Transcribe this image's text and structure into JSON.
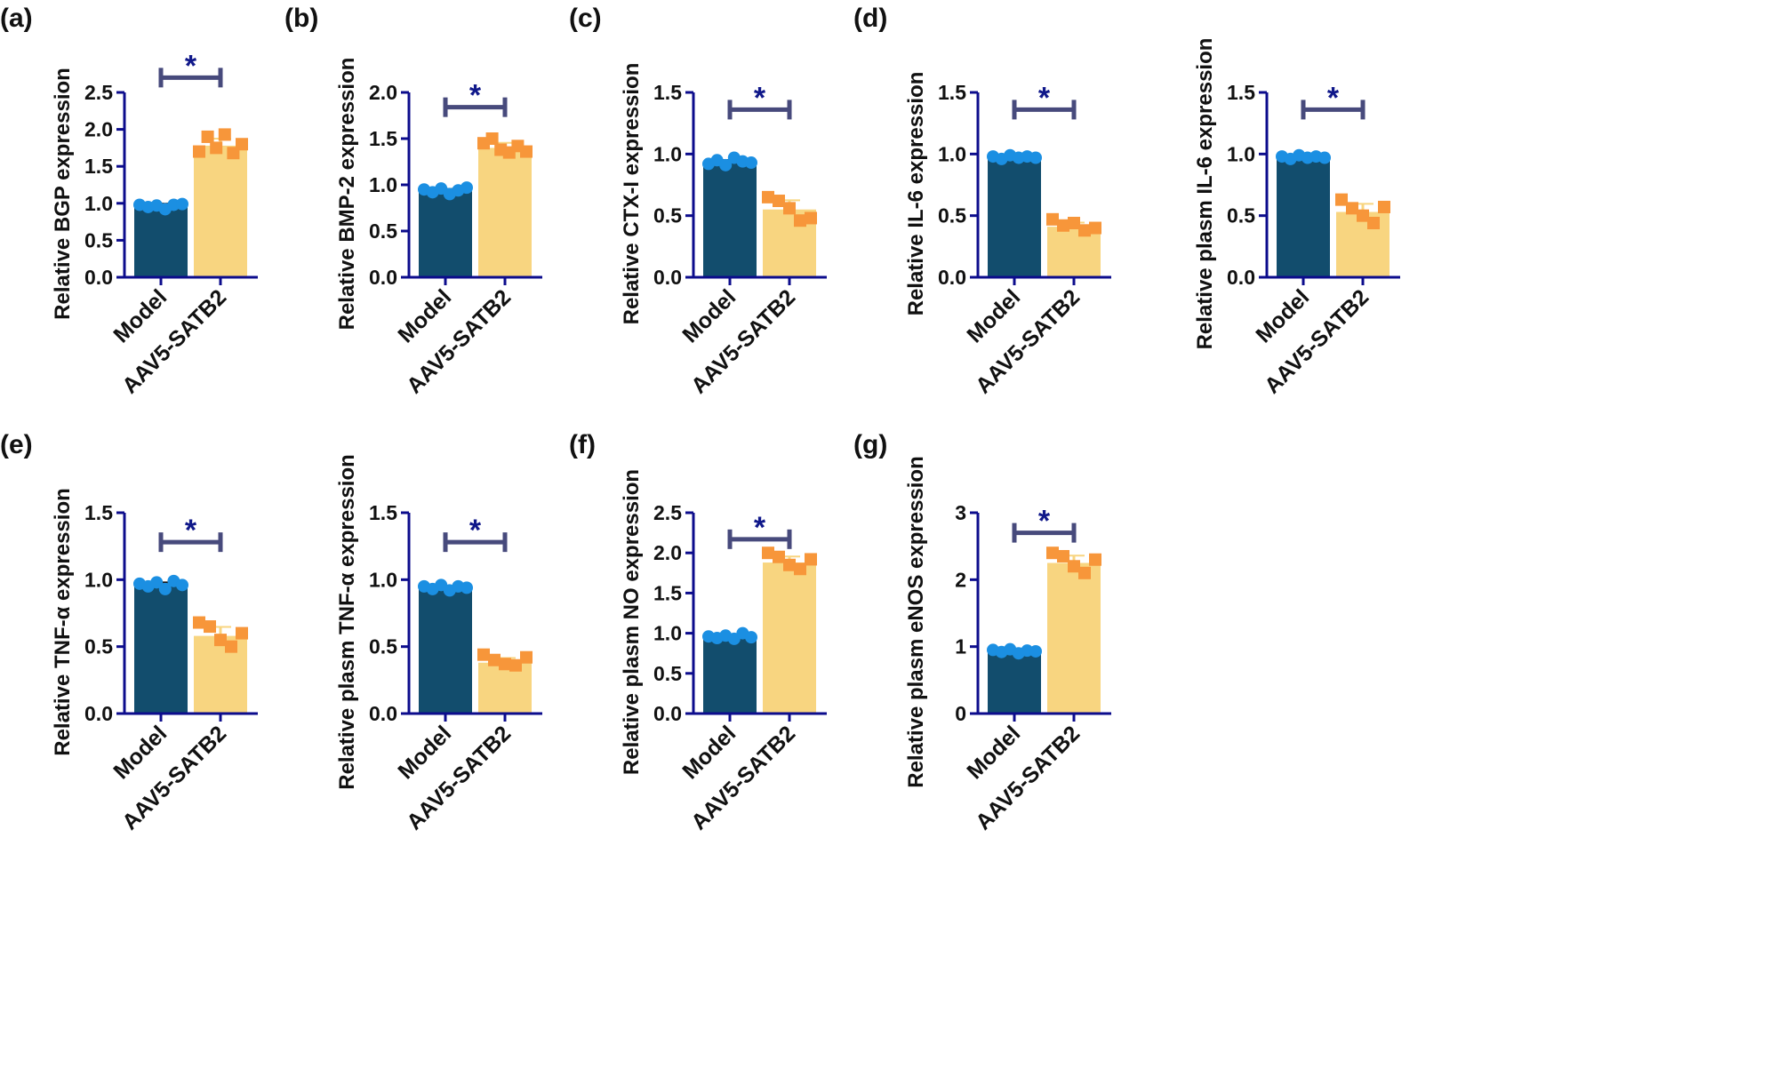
{
  "colors": {
    "model_bar": "#124d6d",
    "model_point": "#1b8fe2",
    "aav_bar": "#f8d580",
    "aav_point": "#f7963a",
    "axis": "#0c0c8c",
    "bracket": "#474a7c",
    "star": "#10188a"
  },
  "chart_data": [
    {
      "type": "bar",
      "panel_label": "(a)",
      "ylabel": "Relative BGP expression",
      "categories": [
        "Model",
        "AAV5-SATB2"
      ],
      "ylim": [
        0,
        2.5
      ],
      "yticks": [
        "0.0",
        "0.5",
        "1.0",
        "1.5",
        "2.0",
        "2.5"
      ],
      "tick_values": [
        0,
        0.5,
        1,
        1.5,
        2,
        2.5
      ],
      "series": [
        {
          "values": [
            0.97,
            1.78
          ]
        }
      ],
      "points": [
        [
          0.98,
          0.95,
          0.97,
          0.92,
          0.98,
          0.99
        ],
        [
          1.7,
          1.9,
          1.75,
          1.93,
          1.68,
          1.8
        ]
      ],
      "significance": "*",
      "bracket_y": 2.7
    },
    {
      "type": "bar",
      "panel_label": "(b)",
      "ylabel": "Relative BMP-2 expression",
      "categories": [
        "Model",
        "AAV5-SATB2"
      ],
      "ylim": [
        0,
        2.0
      ],
      "yticks": [
        "0.0",
        "0.5",
        "1.0",
        "1.5",
        "2.0"
      ],
      "tick_values": [
        0,
        0.5,
        1,
        1.5,
        2
      ],
      "series": [
        {
          "values": [
            0.93,
            1.4
          ]
        }
      ],
      "points": [
        [
          0.95,
          0.92,
          0.96,
          0.9,
          0.94,
          0.97
        ],
        [
          1.45,
          1.5,
          1.38,
          1.35,
          1.42,
          1.36
        ]
      ],
      "significance": "*",
      "bracket_y": 1.84
    },
    {
      "type": "bar",
      "panel_label": "(c)",
      "ylabel": "Relative CTX-I expression",
      "categories": [
        "Model",
        "AAV5-SATB2"
      ],
      "ylim": [
        0,
        1.5
      ],
      "yticks": [
        "0.0",
        "0.5",
        "1.0",
        "1.5"
      ],
      "tick_values": [
        0,
        0.5,
        1,
        1.5
      ],
      "series": [
        {
          "values": [
            0.93,
            0.55
          ]
        }
      ],
      "points": [
        [
          0.92,
          0.95,
          0.91,
          0.97,
          0.94,
          0.93
        ],
        [
          0.65,
          0.62,
          0.56,
          0.46,
          0.48
        ]
      ],
      "significance": "*",
      "bracket_y": 1.36
    },
    {
      "type": "bar",
      "panel_label": "(d)",
      "ylabel": "Relative IL-6 expression",
      "categories": [
        "Model",
        "AAV5-SATB2"
      ],
      "ylim": [
        0,
        1.5
      ],
      "yticks": [
        "0.0",
        "0.5",
        "1.0",
        "1.5"
      ],
      "tick_values": [
        0,
        0.5,
        1,
        1.5
      ],
      "series": [
        {
          "values": [
            0.97,
            0.41
          ]
        }
      ],
      "points": [
        [
          0.98,
          0.96,
          0.99,
          0.97,
          0.98,
          0.97
        ],
        [
          0.47,
          0.42,
          0.44,
          0.38,
          0.4
        ]
      ],
      "significance": "*",
      "bracket_y": 1.36
    },
    {
      "type": "bar",
      "panel_label": "",
      "ylabel": "Relative plasm IL-6 expression",
      "categories": [
        "Model",
        "AAV5-SATB2"
      ],
      "ylim": [
        0,
        1.5
      ],
      "yticks": [
        "0.0",
        "0.5",
        "1.0",
        "1.5"
      ],
      "tick_values": [
        0,
        0.5,
        1,
        1.5
      ],
      "series": [
        {
          "values": [
            0.97,
            0.53
          ]
        }
      ],
      "points": [
        [
          0.98,
          0.96,
          0.99,
          0.97,
          0.98,
          0.97
        ],
        [
          0.63,
          0.56,
          0.5,
          0.44,
          0.57
        ]
      ],
      "significance": "*",
      "bracket_y": 1.36
    },
    {
      "type": "bar",
      "panel_label": "(e)",
      "ylabel": "Relative TNF-α expression",
      "categories": [
        "Model",
        "AAV5-SATB2"
      ],
      "ylim": [
        0,
        1.5
      ],
      "yticks": [
        "0.0",
        "0.5",
        "1.0",
        "1.5"
      ],
      "tick_values": [
        0,
        0.5,
        1,
        1.5
      ],
      "series": [
        {
          "values": [
            0.96,
            0.58
          ]
        }
      ],
      "points": [
        [
          0.97,
          0.95,
          0.98,
          0.93,
          0.99,
          0.96
        ],
        [
          0.68,
          0.65,
          0.55,
          0.5,
          0.6
        ]
      ],
      "significance": "*",
      "bracket_y": 1.28
    },
    {
      "type": "bar",
      "panel_label": "",
      "ylabel": "Relative plasm TNF-α expression",
      "categories": [
        "Model",
        "AAV5-SATB2"
      ],
      "ylim": [
        0,
        1.5
      ],
      "yticks": [
        "0.0",
        "0.5",
        "1.0",
        "1.5"
      ],
      "tick_values": [
        0,
        0.5,
        1,
        1.5
      ],
      "series": [
        {
          "values": [
            0.93,
            0.38
          ]
        }
      ],
      "points": [
        [
          0.95,
          0.93,
          0.96,
          0.92,
          0.95,
          0.94
        ],
        [
          0.44,
          0.4,
          0.37,
          0.36,
          0.42
        ]
      ],
      "significance": "*",
      "bracket_y": 1.28
    },
    {
      "type": "bar",
      "panel_label": "(f)",
      "ylabel": "Relative plasm NO expression",
      "categories": [
        "Model",
        "AAV5-SATB2"
      ],
      "ylim": [
        0,
        2.5
      ],
      "yticks": [
        "0.0",
        "0.5",
        "1.0",
        "1.5",
        "2.0",
        "2.5"
      ],
      "tick_values": [
        0,
        0.5,
        1,
        1.5,
        2,
        2.5
      ],
      "series": [
        {
          "values": [
            0.95,
            1.88
          ]
        }
      ],
      "points": [
        [
          0.96,
          0.94,
          0.97,
          0.93,
          1.0,
          0.95
        ],
        [
          2.0,
          1.95,
          1.85,
          1.8,
          1.92
        ]
      ],
      "significance": "*",
      "bracket_y": 2.17
    },
    {
      "type": "bar",
      "panel_label": "(g)",
      "ylabel": "Relative plasm eNOS expression",
      "categories": [
        "Model",
        "AAV5-SATB2"
      ],
      "ylim": [
        0,
        3
      ],
      "yticks": [
        "0",
        "1",
        "2",
        "3"
      ],
      "tick_values": [
        0,
        1,
        2,
        3
      ],
      "series": [
        {
          "values": [
            0.93,
            2.25
          ]
        }
      ],
      "points": [
        [
          0.95,
          0.92,
          0.96,
          0.9,
          0.94,
          0.93
        ],
        [
          2.4,
          2.35,
          2.2,
          2.1,
          2.3
        ]
      ],
      "significance": "*",
      "bracket_y": 2.7
    }
  ]
}
